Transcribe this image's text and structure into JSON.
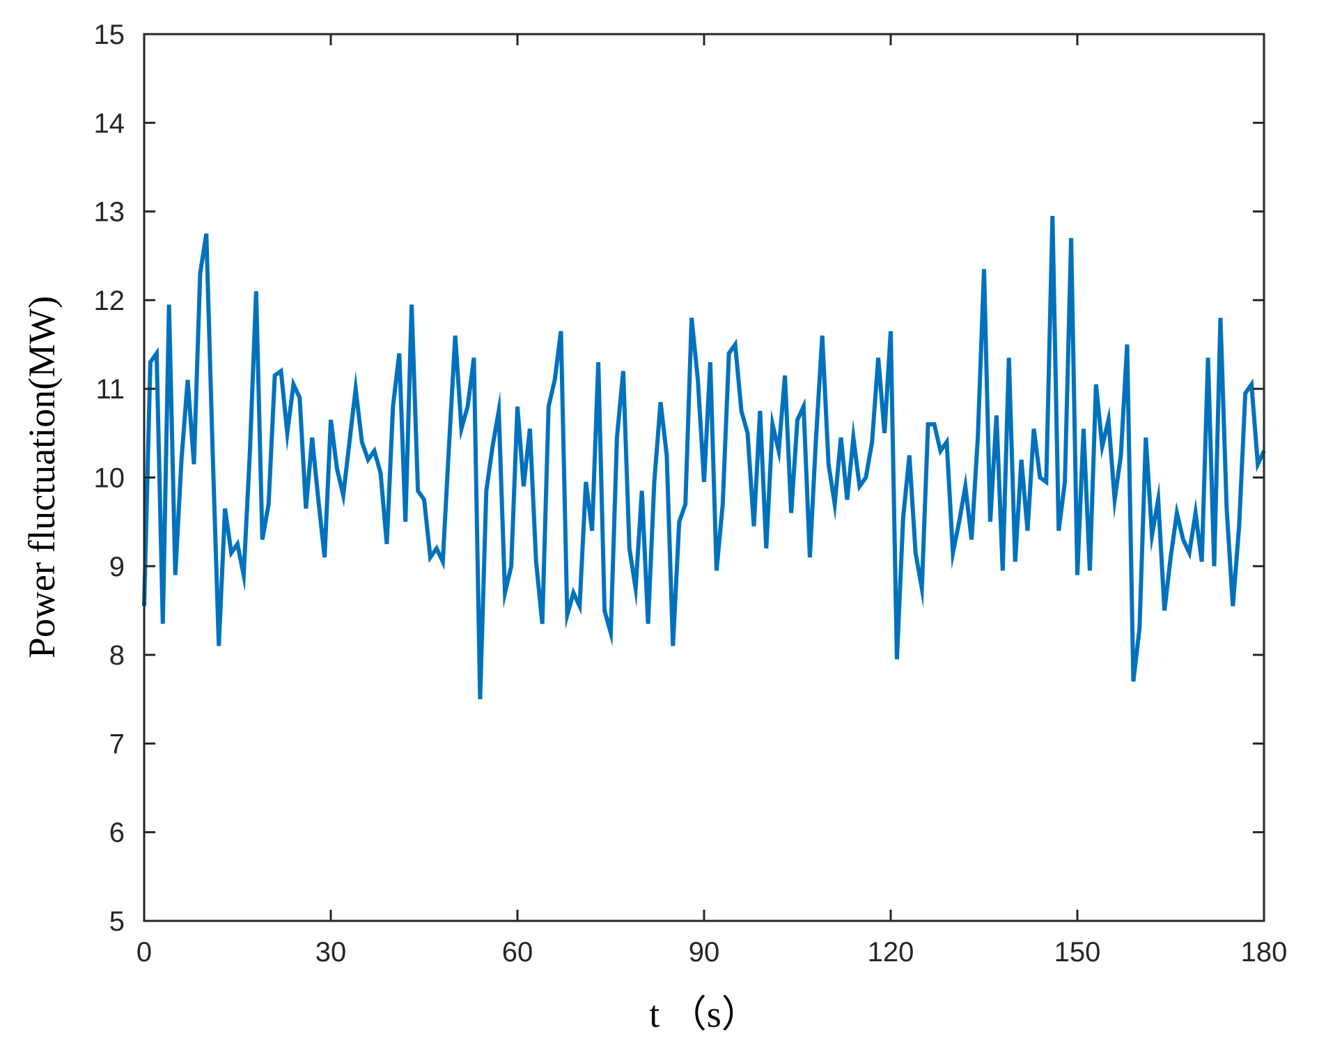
{
  "chart_data": {
    "type": "line",
    "title": "",
    "xlabel": "t （s）",
    "ylabel": "Power fluctuation(MW)",
    "xlim": [
      0,
      180
    ],
    "ylim": [
      5,
      15
    ],
    "xticks": [
      "0",
      "30",
      "60",
      "90",
      "120",
      "150",
      "180"
    ],
    "yticks": [
      "5",
      "6",
      "7",
      "8",
      "9",
      "10",
      "11",
      "12",
      "13",
      "14",
      "15"
    ],
    "grid": false,
    "box": true,
    "line_color": "#0072BD",
    "series": [
      {
        "x": [
          0,
          1,
          2,
          3,
          4,
          5,
          6,
          7,
          8,
          9,
          10,
          11,
          12,
          13,
          14,
          15,
          16,
          17,
          18,
          19,
          20,
          21,
          22,
          23,
          24,
          25,
          26,
          27,
          28,
          29,
          30,
          31,
          32,
          33,
          34,
          35,
          36,
          37,
          38,
          39,
          40,
          41,
          42,
          43,
          44,
          45,
          46,
          47,
          48,
          49,
          50,
          51,
          52,
          53,
          54,
          55,
          56,
          57,
          58,
          59,
          60,
          61,
          62,
          63,
          64,
          65,
          66,
          67,
          68,
          69,
          70,
          71,
          72,
          73,
          74,
          75,
          76,
          77,
          78,
          79,
          80,
          81,
          82,
          83,
          84,
          85,
          86,
          87,
          88,
          89,
          90,
          91,
          92,
          93,
          94,
          95,
          96,
          97,
          98,
          99,
          100,
          101,
          102,
          103,
          104,
          105,
          106,
          107,
          108,
          109,
          110,
          111,
          112,
          113,
          114,
          115,
          116,
          117,
          118,
          119,
          120,
          121,
          122,
          123,
          124,
          125,
          126,
          127,
          128,
          129,
          130,
          131,
          132,
          133,
          134,
          135,
          136,
          137,
          138,
          139,
          140,
          141,
          142,
          143,
          144,
          145,
          146,
          147,
          148,
          149,
          150,
          151,
          152,
          153,
          154,
          155,
          156,
          157,
          158,
          159,
          160,
          161,
          162,
          163,
          164,
          165,
          166,
          167,
          168,
          169,
          170,
          171,
          172,
          173,
          174,
          175,
          176,
          177,
          178,
          179,
          180
        ],
        "y": [
          8.55,
          11.3,
          11.4,
          8.35,
          11.95,
          8.9,
          10.2,
          11.1,
          10.15,
          12.3,
          12.75,
          10.3,
          8.1,
          9.65,
          9.15,
          9.25,
          8.9,
          10.3,
          12.1,
          9.3,
          9.7,
          11.15,
          11.2,
          10.5,
          11.05,
          10.9,
          9.65,
          10.45,
          9.75,
          9.1,
          10.65,
          10.1,
          9.8,
          10.4,
          11.0,
          10.4,
          10.2,
          10.3,
          10.05,
          9.25,
          10.8,
          11.4,
          9.5,
          11.95,
          9.85,
          9.75,
          9.1,
          9.2,
          9.05,
          10.35,
          11.6,
          10.55,
          10.8,
          11.35,
          7.5,
          9.85,
          10.35,
          10.75,
          8.7,
          9.0,
          10.8,
          9.9,
          10.55,
          9.05,
          8.35,
          10.8,
          11.1,
          11.65,
          8.45,
          8.7,
          8.55,
          9.95,
          9.4,
          11.3,
          8.5,
          8.25,
          10.45,
          11.2,
          9.2,
          8.75,
          9.85,
          8.35,
          9.95,
          10.85,
          10.25,
          8.1,
          9.5,
          9.7,
          11.8,
          11.1,
          9.95,
          11.3,
          8.95,
          9.7,
          11.4,
          11.5,
          10.75,
          10.5,
          9.45,
          10.75,
          9.2,
          10.6,
          10.3,
          11.15,
          9.6,
          10.65,
          10.8,
          9.1,
          10.45,
          11.6,
          10.15,
          9.7,
          10.45,
          9.75,
          10.45,
          9.9,
          10.0,
          10.4,
          11.35,
          10.5,
          11.65,
          7.95,
          9.55,
          10.25,
          9.15,
          8.75,
          10.6,
          10.6,
          10.3,
          10.4,
          9.15,
          9.5,
          9.9,
          9.3,
          10.45,
          12.35,
          9.5,
          10.7,
          8.95,
          11.35,
          9.05,
          10.2,
          9.4,
          10.55,
          10.0,
          9.95,
          12.95,
          9.4,
          9.95,
          12.7,
          8.9,
          10.55,
          8.95,
          11.05,
          10.35,
          10.65,
          9.75,
          10.25,
          11.5,
          7.7,
          8.3,
          10.45,
          9.35,
          9.75,
          8.5,
          9.1,
          9.6,
          9.3,
          9.15,
          9.6,
          9.05,
          11.35,
          9.0,
          11.8,
          9.65,
          8.55,
          9.45,
          10.95,
          11.05,
          10.15,
          10.3
        ]
      }
    ]
  }
}
